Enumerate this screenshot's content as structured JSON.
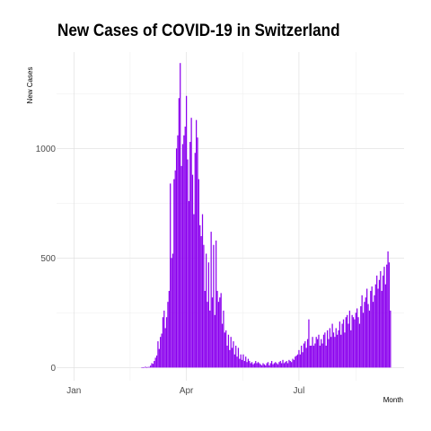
{
  "chart_data": {
    "type": "bar",
    "title": "New Cases of COVID-19 in Switzerland",
    "xlabel": "Month",
    "ylabel": "New Cases",
    "x_ticks": [
      {
        "label": "Jan",
        "date": "2020-01-01"
      },
      {
        "label": "Apr",
        "date": "2020-04-01"
      },
      {
        "label": "Jul",
        "date": "2020-07-01"
      }
    ],
    "y_ticks": [
      0,
      500,
      1000
    ],
    "xlim": [
      "2019-12-18",
      "2020-09-24"
    ],
    "ylim": [
      -60,
      1440
    ],
    "grid": true,
    "bar_color": "#8b00ee",
    "start_date": "2020-02-25",
    "values": [
      1,
      1,
      2,
      4,
      1,
      3,
      3,
      9,
      20,
      17,
      30,
      45,
      55,
      120,
      85,
      140,
      155,
      230,
      260,
      180,
      230,
      300,
      350,
      840,
      500,
      520,
      860,
      900,
      1000,
      1060,
      1230,
      1390,
      920,
      1020,
      1060,
      1100,
      1240,
      950,
      760,
      1030,
      1140,
      880,
      700,
      980,
      1130,
      1050,
      860,
      650,
      600,
      700,
      560,
      350,
      520,
      300,
      480,
      260,
      620,
      320,
      560,
      240,
      580,
      350,
      300,
      320,
      340,
      200,
      260,
      160,
      170,
      100,
      150,
      80,
      140,
      90,
      120,
      60,
      100,
      50,
      90,
      40,
      60,
      35,
      60,
      30,
      50,
      25,
      40,
      30,
      20,
      25,
      15,
      20,
      30,
      20,
      25,
      20,
      15,
      10,
      20,
      15,
      10,
      20,
      25,
      10,
      20,
      30,
      15,
      20,
      25,
      20,
      15,
      25,
      30,
      20,
      35,
      20,
      25,
      30,
      20,
      35,
      30,
      25,
      40,
      35,
      50,
      55,
      60,
      80,
      60,
      100,
      70,
      110,
      120,
      90,
      130,
      220,
      100,
      100,
      140,
      100,
      110,
      140,
      130,
      150,
      100,
      130,
      110,
      150,
      160,
      100,
      170,
      130,
      180,
      140,
      200,
      160,
      140,
      180,
      150,
      170,
      210,
      150,
      200,
      220,
      160,
      230,
      240,
      200,
      260,
      170,
      240,
      230,
      220,
      250,
      270,
      230,
      200,
      280,
      330,
      250,
      300,
      320,
      360,
      290,
      260,
      350,
      370,
      300,
      330,
      380,
      420,
      360,
      400,
      440,
      350,
      420,
      460,
      380,
      470,
      530,
      480,
      260
    ]
  }
}
